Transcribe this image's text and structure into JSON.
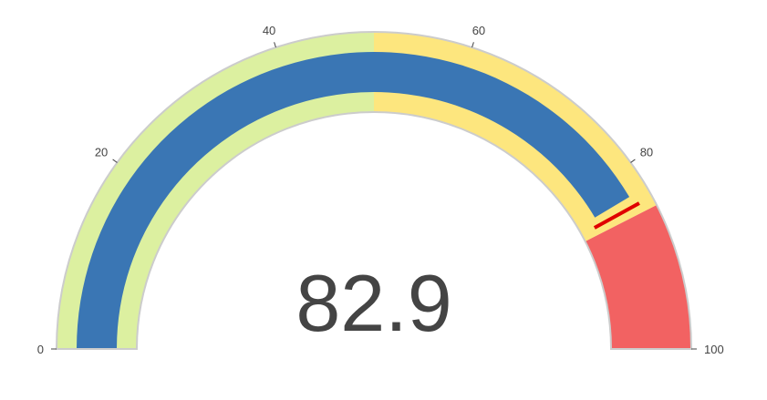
{
  "chart_data": {
    "type": "gauge",
    "value": 82.9,
    "value_label": "82.9",
    "range": [
      0,
      100
    ],
    "ticks": [
      {
        "value": 0,
        "label": "0"
      },
      {
        "value": 20,
        "label": "20"
      },
      {
        "value": 40,
        "label": "40"
      },
      {
        "value": 60,
        "label": "60"
      },
      {
        "value": 80,
        "label": "80"
      },
      {
        "value": 100,
        "label": "100"
      }
    ],
    "steps": [
      {
        "range": [
          0,
          50
        ],
        "color": "#dcf0a0"
      },
      {
        "range": [
          50,
          85
        ],
        "color": "#fde67e"
      },
      {
        "range": [
          85,
          100
        ],
        "color": "#f26262"
      }
    ],
    "threshold": {
      "value": 84,
      "color": "#e00000"
    },
    "bar_color": "#3a76b4",
    "border_color": "#cccccc"
  }
}
